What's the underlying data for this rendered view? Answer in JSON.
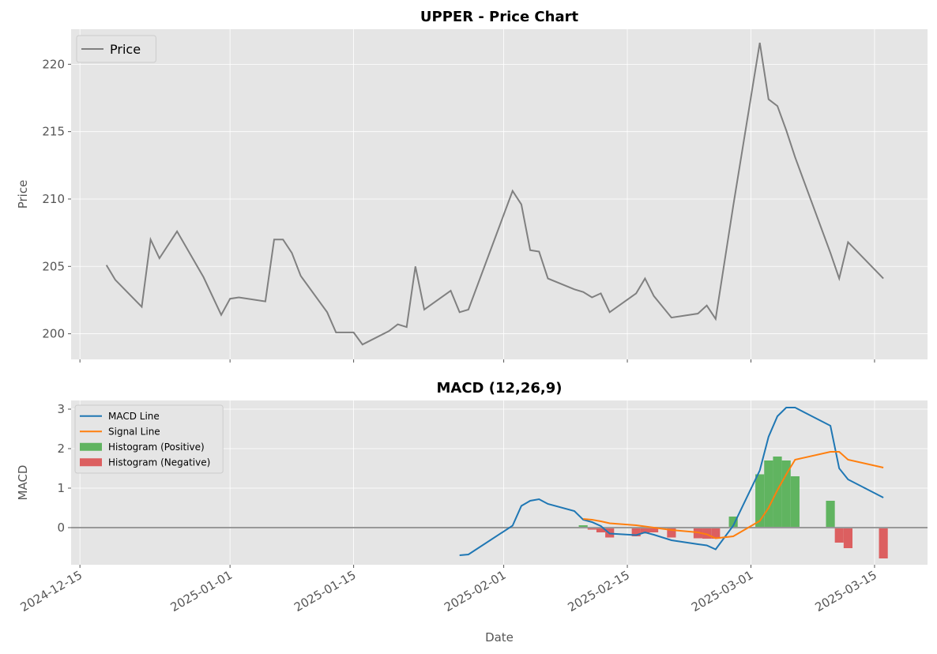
{
  "chart_data": [
    {
      "type": "line",
      "title": "UPPER - Price Chart",
      "ylabel": "Price",
      "x": [
        "2024-12-18",
        "2024-12-19",
        "2024-12-22",
        "2024-12-23",
        "2024-12-24",
        "2024-12-26",
        "2024-12-29",
        "2024-12-31",
        "2025-01-01",
        "2025-01-02",
        "2025-01-05",
        "2025-01-06",
        "2025-01-07",
        "2025-01-08",
        "2025-01-09",
        "2025-01-12",
        "2025-01-13",
        "2025-01-15",
        "2025-01-16",
        "2025-01-19",
        "2025-01-20",
        "2025-01-21",
        "2025-01-22",
        "2025-01-23",
        "2025-01-26",
        "2025-01-27",
        "2025-01-28",
        "2025-02-02",
        "2025-02-03",
        "2025-02-04",
        "2025-02-05",
        "2025-02-06",
        "2025-02-09",
        "2025-02-10",
        "2025-02-11",
        "2025-02-12",
        "2025-02-13",
        "2025-02-16",
        "2025-02-17",
        "2025-02-18",
        "2025-02-20",
        "2025-02-23",
        "2025-02-24",
        "2025-02-25",
        "2025-02-27",
        "2025-03-02",
        "2025-03-03",
        "2025-03-04",
        "2025-03-05",
        "2025-03-06",
        "2025-03-10",
        "2025-03-11",
        "2025-03-12",
        "2025-03-16"
      ],
      "series": [
        {
          "name": "Price",
          "color": "#808080",
          "values": [
            205.1,
            204.0,
            202.0,
            207.0,
            205.6,
            207.6,
            204.2,
            201.4,
            202.6,
            202.7,
            202.4,
            207.0,
            207.0,
            206.0,
            204.3,
            201.6,
            200.1,
            200.1,
            199.2,
            200.2,
            200.7,
            200.5,
            205.0,
            201.8,
            203.2,
            201.6,
            201.8,
            210.6,
            209.6,
            206.2,
            206.1,
            204.1,
            203.3,
            203.1,
            202.7,
            203.0,
            201.6,
            203.0,
            204.1,
            202.8,
            201.2,
            201.5,
            202.1,
            201.1,
            209.5,
            221.6,
            217.4,
            216.9,
            215.1,
            213.1,
            206.0,
            204.1,
            206.8,
            204.1
          ]
        }
      ],
      "xlim": [
        "2024-12-14",
        "2025-03-21"
      ],
      "ylim": [
        198.1,
        222.6
      ],
      "yticks": [
        200,
        205,
        210,
        215,
        220
      ],
      "grid": true,
      "legend": "upper left"
    },
    {
      "type": "macd",
      "title": "MACD (12,26,9)",
      "xlabel": "Date",
      "ylabel": "MACD",
      "x": [
        "2024-12-18",
        "2024-12-19",
        "2024-12-22",
        "2024-12-23",
        "2024-12-24",
        "2024-12-26",
        "2024-12-29",
        "2024-12-31",
        "2025-01-01",
        "2025-01-02",
        "2025-01-05",
        "2025-01-06",
        "2025-01-07",
        "2025-01-08",
        "2025-01-09",
        "2025-01-12",
        "2025-01-13",
        "2025-01-15",
        "2025-01-16",
        "2025-01-19",
        "2025-01-20",
        "2025-01-21",
        "2025-01-22",
        "2025-01-23",
        "2025-01-26",
        "2025-01-27",
        "2025-01-28",
        "2025-02-02",
        "2025-02-03",
        "2025-02-04",
        "2025-02-05",
        "2025-02-06",
        "2025-02-09",
        "2025-02-10",
        "2025-02-11",
        "2025-02-12",
        "2025-02-13",
        "2025-02-16",
        "2025-02-17",
        "2025-02-18",
        "2025-02-20",
        "2025-02-23",
        "2025-02-24",
        "2025-02-25",
        "2025-02-27",
        "2025-03-02",
        "2025-03-03",
        "2025-03-04",
        "2025-03-05",
        "2025-03-06",
        "2025-03-10",
        "2025-03-11",
        "2025-03-12",
        "2025-03-16"
      ],
      "series": [
        {
          "name": "MACD Line",
          "kind": "line",
          "color": "#1f77b4",
          "values": [
            null,
            null,
            null,
            null,
            null,
            null,
            null,
            null,
            null,
            null,
            null,
            null,
            null,
            null,
            null,
            null,
            null,
            null,
            null,
            null,
            null,
            null,
            null,
            null,
            null,
            -0.7,
            -0.68,
            0.05,
            0.55,
            0.68,
            0.72,
            0.6,
            0.42,
            0.2,
            0.14,
            0.04,
            -0.15,
            -0.19,
            -0.12,
            -0.18,
            -0.32,
            -0.42,
            -0.45,
            -0.55,
            0.05,
            1.45,
            2.3,
            2.82,
            3.04,
            3.04,
            2.58,
            1.5,
            1.22,
            0.76
          ]
        },
        {
          "name": "Signal Line",
          "kind": "line",
          "color": "#ff7f0e",
          "values": [
            null,
            null,
            null,
            null,
            null,
            null,
            null,
            null,
            null,
            null,
            null,
            null,
            null,
            null,
            null,
            null,
            null,
            null,
            null,
            null,
            null,
            null,
            null,
            null,
            null,
            null,
            null,
            null,
            null,
            null,
            null,
            null,
            null,
            0.22,
            0.2,
            0.16,
            0.11,
            0.06,
            0.03,
            0.0,
            -0.06,
            -0.12,
            -0.17,
            -0.27,
            -0.22,
            0.17,
            0.5,
            0.95,
            1.35,
            1.72,
            1.92,
            1.92,
            1.72,
            1.52
          ]
        },
        {
          "name": "Histogram (Positive)",
          "kind": "bar",
          "color": "#60b460",
          "values": [
            null,
            null,
            null,
            null,
            null,
            null,
            null,
            null,
            null,
            null,
            null,
            null,
            null,
            null,
            null,
            null,
            null,
            null,
            null,
            null,
            null,
            null,
            null,
            null,
            null,
            null,
            null,
            null,
            null,
            null,
            null,
            null,
            null,
            0.06,
            null,
            null,
            null,
            null,
            null,
            null,
            null,
            null,
            null,
            null,
            0.28,
            1.35,
            1.7,
            1.8,
            1.7,
            1.3,
            0.68,
            null,
            null,
            null
          ]
        },
        {
          "name": "Histogram (Negative)",
          "kind": "bar",
          "color": "#dc5f60",
          "values": [
            null,
            null,
            null,
            null,
            null,
            null,
            null,
            null,
            null,
            null,
            null,
            null,
            null,
            null,
            null,
            null,
            null,
            null,
            null,
            null,
            null,
            null,
            null,
            null,
            null,
            null,
            null,
            null,
            null,
            null,
            null,
            null,
            null,
            null,
            -0.05,
            -0.12,
            -0.25,
            -0.22,
            -0.15,
            -0.12,
            -0.25,
            -0.27,
            -0.28,
            -0.28,
            null,
            null,
            null,
            null,
            null,
            null,
            null,
            -0.38,
            -0.52,
            -0.78
          ]
        }
      ],
      "hline": 0,
      "xlim": [
        "2024-12-14",
        "2025-03-21"
      ],
      "xticks": [
        "2024-12-15",
        "2025-01-01",
        "2025-01-15",
        "2025-02-01",
        "2025-02-15",
        "2025-03-01",
        "2025-03-15"
      ],
      "ylim": [
        -0.94,
        3.22
      ],
      "yticks": [
        0,
        1,
        2,
        3
      ],
      "grid": true,
      "legend": "upper left"
    }
  ]
}
